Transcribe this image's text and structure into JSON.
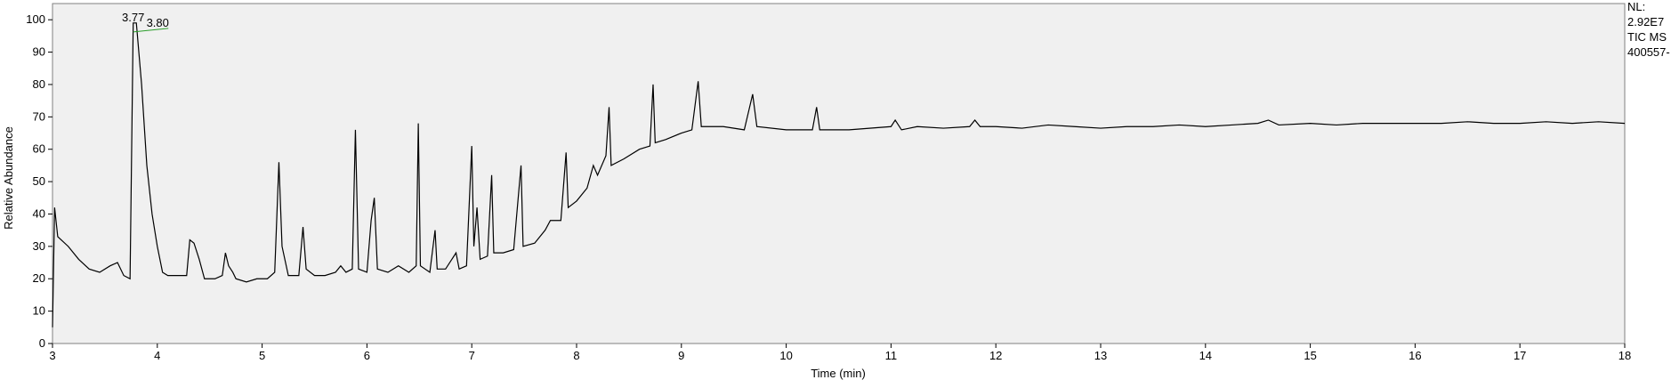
{
  "chart_data": {
    "type": "line",
    "x_label": "Time (min)",
    "y_label": "Relative Abundance",
    "xlim": [
      3,
      18
    ],
    "xticks": [
      3,
      4,
      5,
      6,
      7,
      8,
      9,
      10,
      11,
      12,
      13,
      14,
      15,
      16,
      17,
      18
    ],
    "ylim": [
      0,
      105
    ],
    "yticks": [
      0,
      10,
      20,
      30,
      40,
      50,
      60,
      70,
      80,
      90,
      100
    ],
    "color": "#000000",
    "x": [
      3.0,
      3.02,
      3.05,
      3.15,
      3.25,
      3.35,
      3.45,
      3.55,
      3.62,
      3.68,
      3.74,
      3.77,
      3.8,
      3.85,
      3.9,
      3.95,
      4.0,
      4.05,
      4.1,
      4.2,
      4.28,
      4.31,
      4.35,
      4.4,
      4.45,
      4.55,
      4.62,
      4.65,
      4.68,
      4.72,
      4.75,
      4.85,
      4.95,
      5.05,
      5.12,
      5.16,
      5.19,
      5.25,
      5.35,
      5.39,
      5.42,
      5.5,
      5.6,
      5.7,
      5.75,
      5.8,
      5.86,
      5.89,
      5.92,
      6.0,
      6.04,
      6.07,
      6.1,
      6.2,
      6.3,
      6.4,
      6.47,
      6.49,
      6.51,
      6.6,
      6.65,
      6.67,
      6.75,
      6.85,
      6.88,
      6.95,
      7.0,
      7.02,
      7.05,
      7.08,
      7.15,
      7.19,
      7.21,
      7.3,
      7.4,
      7.47,
      7.49,
      7.6,
      7.7,
      7.75,
      7.85,
      7.9,
      7.92,
      8.0,
      8.1,
      8.16,
      8.2,
      8.28,
      8.31,
      8.33,
      8.45,
      8.6,
      8.7,
      8.73,
      8.75,
      8.85,
      9.0,
      9.1,
      9.16,
      9.19,
      9.4,
      9.6,
      9.68,
      9.72,
      10.0,
      10.25,
      10.29,
      10.32,
      10.6,
      11.0,
      11.04,
      11.1,
      11.25,
      11.5,
      11.75,
      11.8,
      11.85,
      12.0,
      12.25,
      12.5,
      12.75,
      13.0,
      13.25,
      13.5,
      13.75,
      14.0,
      14.25,
      14.5,
      14.6,
      14.7,
      15.0,
      15.25,
      15.5,
      15.75,
      16.0,
      16.25,
      16.5,
      16.75,
      17.0,
      17.25,
      17.5,
      17.75,
      18.0
    ],
    "values": [
      5,
      42,
      33,
      30,
      26,
      23,
      22,
      24,
      25,
      21,
      20,
      99,
      99,
      80,
      55,
      40,
      30,
      22,
      21,
      21,
      21,
      32,
      31,
      26,
      20,
      20,
      21,
      28,
      24,
      22,
      20,
      19,
      20,
      20,
      22,
      56,
      30,
      21,
      21,
      36,
      23,
      21,
      21,
      22,
      24,
      22,
      23,
      66,
      23,
      22,
      38,
      45,
      23,
      22,
      24,
      22,
      24,
      68,
      24,
      22,
      35,
      23,
      23,
      28,
      23,
      24,
      61,
      30,
      42,
      26,
      27,
      52,
      28,
      28,
      29,
      55,
      30,
      31,
      35,
      38,
      38,
      59,
      42,
      44,
      48,
      55,
      52,
      58,
      73,
      55,
      57,
      60,
      61,
      80,
      62,
      63,
      65,
      66,
      81,
      67,
      67,
      66,
      77,
      67,
      66,
      66,
      73,
      66,
      66,
      67,
      69,
      66,
      67,
      66.5,
      67,
      69,
      67,
      67,
      66.5,
      67.5,
      67,
      66.5,
      67,
      67,
      67.5,
      67,
      67.5,
      68,
      69,
      67.5,
      68,
      67.5,
      68,
      68,
      68,
      68,
      68.5,
      68,
      68,
      68.5,
      68,
      68.5,
      68
    ],
    "peak_labels": [
      {
        "label": "3.77",
        "x": 3.77
      },
      {
        "label": "3.80",
        "x": 3.8
      }
    ],
    "info": [
      "NL:",
      "2.92E7",
      "TIC  MS",
      "400557-"
    ]
  }
}
